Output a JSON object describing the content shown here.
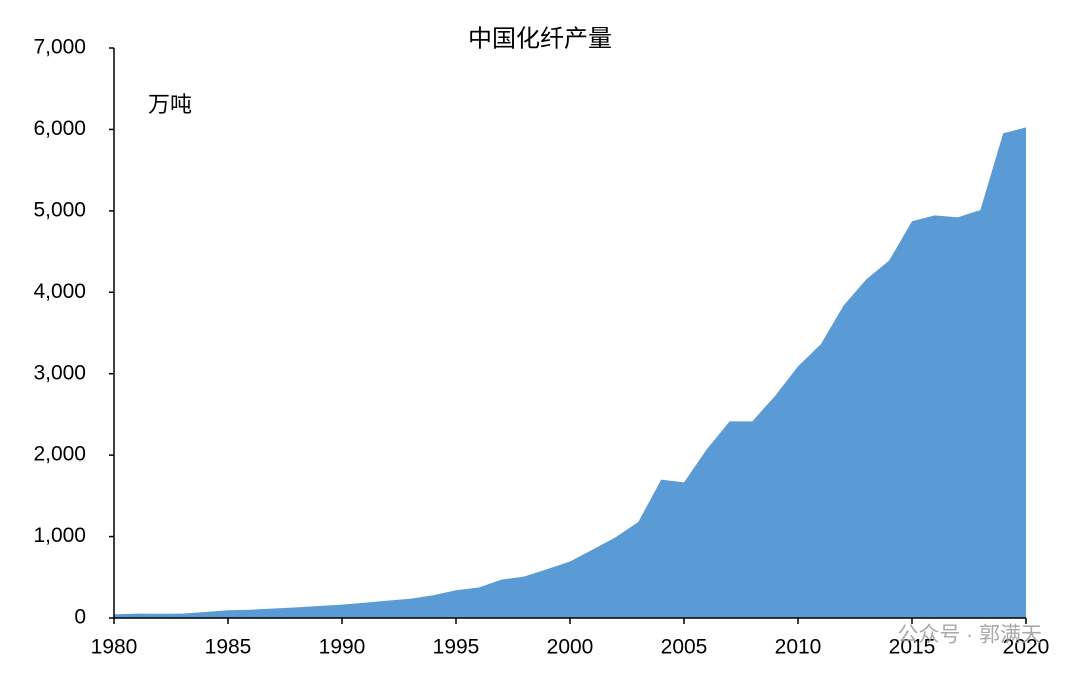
{
  "chart_data": {
    "type": "area",
    "title": "中国化纤产量",
    "unit_label": "万吨",
    "watermark": "公众号 · 郭满天",
    "x": [
      1980,
      1981,
      1982,
      1983,
      1984,
      1985,
      1986,
      1987,
      1988,
      1989,
      1990,
      1991,
      1992,
      1993,
      1994,
      1995,
      1996,
      1997,
      1998,
      1999,
      2000,
      2001,
      2002,
      2003,
      2004,
      2005,
      2006,
      2007,
      2008,
      2009,
      2010,
      2011,
      2012,
      2013,
      2014,
      2015,
      2016,
      2017,
      2018,
      2019,
      2020
    ],
    "values": [
      45,
      53,
      52,
      54,
      73,
      95,
      102,
      117,
      130,
      148,
      165,
      188,
      213,
      237,
      280,
      341,
      375,
      471,
      510,
      600,
      694,
      841,
      991,
      1181,
      1700,
      1665,
      2073,
      2414,
      2415,
      2730,
      3090,
      3362,
      3837,
      4160,
      4390,
      4872,
      4944,
      4920,
      5011,
      5953,
      6025
    ],
    "color": "#5b9bd5",
    "xlim": [
      1980,
      2020
    ],
    "xticks": [
      1980,
      1985,
      1990,
      1995,
      2000,
      2005,
      2010,
      2015,
      2020
    ],
    "ylim": [
      0,
      7000
    ],
    "yticks": [
      0,
      {
        "value": 1000,
        "label": "1,000"
      },
      {
        "value": 2000,
        "label": "2,000"
      },
      {
        "value": 3000,
        "label": "3,000"
      },
      {
        "value": 4000,
        "label": "4,000"
      },
      {
        "value": 5000,
        "label": "5,000"
      },
      {
        "value": 6000,
        "label": "6,000"
      },
      {
        "value": 7000,
        "label": "7,000"
      }
    ]
  }
}
